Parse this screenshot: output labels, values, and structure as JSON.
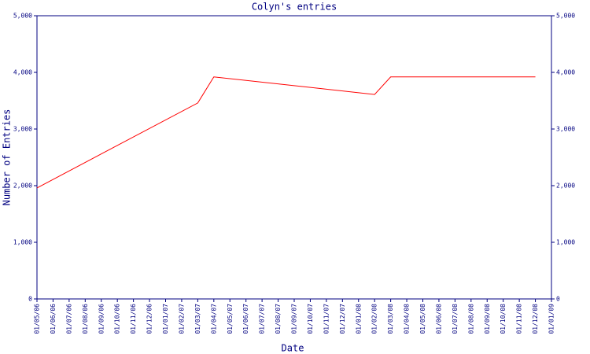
{
  "chart_data": {
    "type": "line",
    "title": "Colyn's entries",
    "x_label": "Date",
    "y_label": "Number of Entries",
    "categories": [
      "01/05/06",
      "01/06/06",
      "01/07/06",
      "01/08/06",
      "01/09/06",
      "01/10/06",
      "01/11/06",
      "01/12/06",
      "01/01/07",
      "01/02/07",
      "01/03/07",
      "01/04/07",
      "01/05/07",
      "01/06/07",
      "01/07/07",
      "01/08/07",
      "01/09/07",
      "01/10/07",
      "01/11/07",
      "01/12/07",
      "01/01/08",
      "01/02/08",
      "01/03/08",
      "01/04/08",
      "01/05/08",
      "01/06/08",
      "01/07/08",
      "01/08/08",
      "01/09/08",
      "01/10/08",
      "01/11/08",
      "01/12/08",
      "01/01/09"
    ],
    "series": [
      {
        "name": "Entries",
        "color": "#ff0000",
        "x": [
          "01/05/06",
          "01/03/07",
          "01/04/07",
          "01/02/08",
          "01/03/08",
          "01/12/08"
        ],
        "values": [
          1960,
          3460,
          3920,
          3610,
          3920,
          3920
        ]
      }
    ],
    "ylim": [
      0,
      5000
    ],
    "yticks": [
      0,
      {
        "value": 1000,
        "label": "1,000"
      },
      {
        "value": 2000,
        "label": "2,000"
      },
      {
        "value": 3000,
        "label": "3,000"
      },
      {
        "value": 4000,
        "label": "4,000"
      },
      {
        "value": 5000,
        "label": "5,000"
      }
    ],
    "axis_color": "#000080"
  }
}
